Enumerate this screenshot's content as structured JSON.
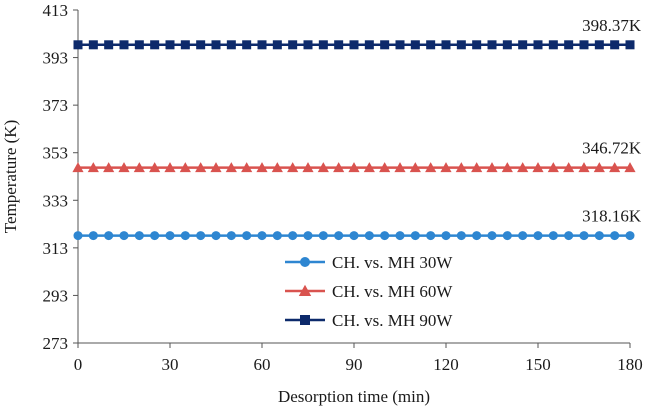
{
  "chart_data": {
    "type": "line",
    "title": "",
    "xlabel": "Desorption time (min)",
    "ylabel": "Temperature (K)",
    "xlim": [
      0,
      180
    ],
    "ylim": [
      273,
      413
    ],
    "x_ticks": [
      "0",
      "30",
      "60",
      "90",
      "120",
      "150",
      "180"
    ],
    "y_ticks": [
      "273",
      "293",
      "313",
      "333",
      "353",
      "373",
      "393",
      "413"
    ],
    "grid": false,
    "legend_position": "lower-center",
    "x": [
      0,
      5,
      10,
      15,
      20,
      25,
      30,
      35,
      40,
      45,
      50,
      55,
      60,
      65,
      70,
      75,
      80,
      85,
      90,
      95,
      100,
      105,
      110,
      115,
      120,
      125,
      130,
      135,
      140,
      145,
      150,
      155,
      160,
      165,
      170,
      175,
      180
    ],
    "series": [
      {
        "name": "CH. vs. MH 30W",
        "color": "#2e86d1",
        "marker": "circle",
        "values": [
          318.16,
          318.16,
          318.16,
          318.16,
          318.16,
          318.16,
          318.16,
          318.16,
          318.16,
          318.16,
          318.16,
          318.16,
          318.16,
          318.16,
          318.16,
          318.16,
          318.16,
          318.16,
          318.16,
          318.16,
          318.16,
          318.16,
          318.16,
          318.16,
          318.16,
          318.16,
          318.16,
          318.16,
          318.16,
          318.16,
          318.16,
          318.16,
          318.16,
          318.16,
          318.16,
          318.16,
          318.16
        ],
        "annotation": "318.16K"
      },
      {
        "name": "CH. vs. MH 60W",
        "color": "#d9534f",
        "marker": "triangle",
        "values": [
          346.72,
          346.72,
          346.72,
          346.72,
          346.72,
          346.72,
          346.72,
          346.72,
          346.72,
          346.72,
          346.72,
          346.72,
          346.72,
          346.72,
          346.72,
          346.72,
          346.72,
          346.72,
          346.72,
          346.72,
          346.72,
          346.72,
          346.72,
          346.72,
          346.72,
          346.72,
          346.72,
          346.72,
          346.72,
          346.72,
          346.72,
          346.72,
          346.72,
          346.72,
          346.72,
          346.72,
          346.72
        ],
        "annotation": "346.72K"
      },
      {
        "name": "CH. vs. MH 90W",
        "color": "#0d2a6b",
        "marker": "square",
        "values": [
          398.37,
          398.37,
          398.37,
          398.37,
          398.37,
          398.37,
          398.37,
          398.37,
          398.37,
          398.37,
          398.37,
          398.37,
          398.37,
          398.37,
          398.37,
          398.37,
          398.37,
          398.37,
          398.37,
          398.37,
          398.37,
          398.37,
          398.37,
          398.37,
          398.37,
          398.37,
          398.37,
          398.37,
          398.37,
          398.37,
          398.37,
          398.37,
          398.37,
          398.37,
          398.37,
          398.37,
          398.37
        ],
        "annotation": "398.37K"
      }
    ]
  }
}
